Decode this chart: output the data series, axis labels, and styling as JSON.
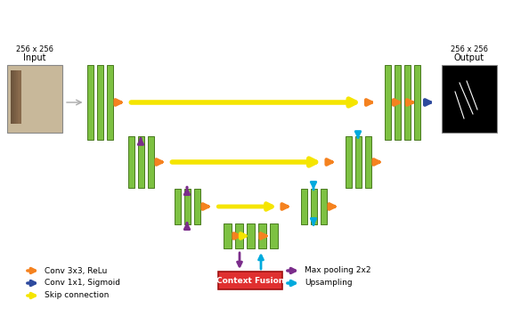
{
  "bg_color": "#ffffff",
  "green_color": "#7dc142",
  "green_edge": "#4a7a20",
  "orange_arrow": "#f5821f",
  "blue_arrow": "#2e4a9e",
  "yellow_arrow": "#f5e500",
  "purple_arrow": "#7b2d8b",
  "cyan_arrow": "#00aadd",
  "red_box": "#e03030",
  "input_label": "Input",
  "output_label": "Output",
  "input_size": "256 x 256",
  "output_size": "256 x 256",
  "context_fusion_label": "Context Fusion",
  "legend": [
    {
      "label": "Conv 3x3, ReLu",
      "color": "#f5821f",
      "col": 0
    },
    {
      "label": "Conv 1x1, Sigmoid",
      "color": "#2e4a9e",
      "col": 0
    },
    {
      "label": "Skip connection",
      "color": "#f5e500",
      "col": 0
    },
    {
      "label": "Max pooling 2x2",
      "color": "#7b2d8b",
      "col": 1
    },
    {
      "label": "Upsampling",
      "color": "#00aadd",
      "col": 1
    }
  ]
}
